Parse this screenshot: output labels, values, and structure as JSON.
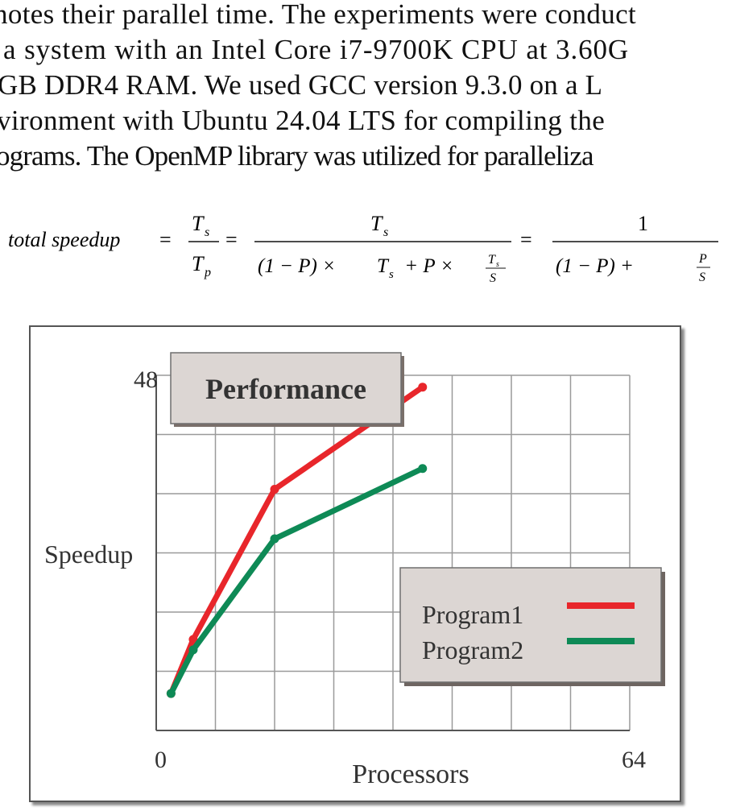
{
  "paragraph": {
    "lines": [
      "notes their parallel time. The experiments were conduct",
      "a system with an Intel Core i7-9700K CPU at 3.60G",
      "GB DDR4 RAM. We used GCC version 9.3.0 on a L",
      "vironment with Ubuntu 24.04 LTS for compiling the",
      "ograms. The OpenMP library was utilized for paralleliza"
    ]
  },
  "formula": {
    "lhs": "total speedup",
    "eq": "=",
    "Ts": "T",
    "sub_s": "s",
    "Tp": "T",
    "sub_p": "p",
    "term_one_minus_p": "(1 − P) × ",
    "plus_p_times": " + P × ",
    "S": "S",
    "one": "1",
    "denom_final": "(1 − P) + ",
    "P": "P"
  },
  "chart_data": {
    "type": "line",
    "title": "Performance",
    "xlabel": "Processors",
    "ylabel": "Speedup",
    "x_ticks": [
      "0",
      "64"
    ],
    "y_ticks": [
      "48"
    ],
    "xlim": [
      0,
      64
    ],
    "ylim": [
      0,
      48
    ],
    "grid": true,
    "legend_position": "bottom-right",
    "series": [
      {
        "name": "Program1",
        "color": "#e8262b",
        "x": [
          2,
          5,
          16,
          36
        ],
        "y": [
          5,
          12.3,
          32.6,
          46.4
        ]
      },
      {
        "name": "Program2",
        "color": "#0e8a56",
        "x": [
          2,
          5,
          16,
          36
        ],
        "y": [
          5,
          10.9,
          25.9,
          35.4
        ]
      }
    ]
  }
}
